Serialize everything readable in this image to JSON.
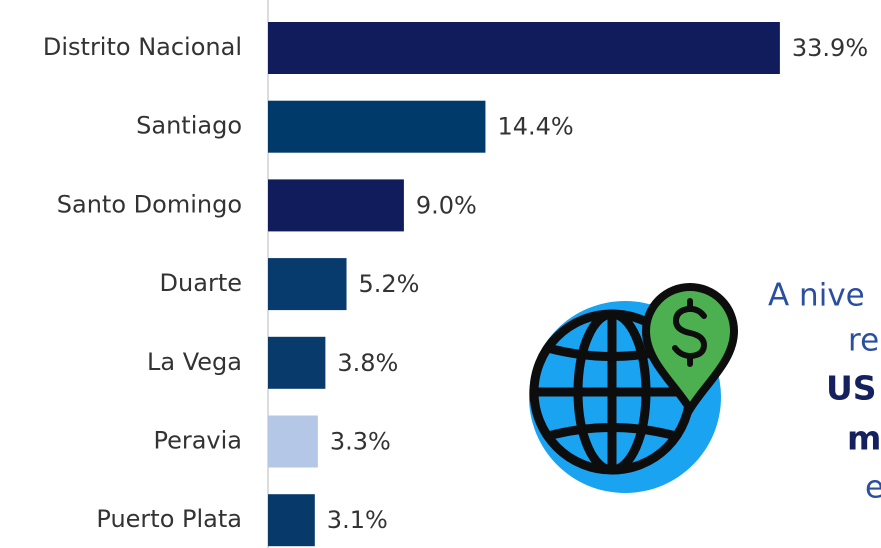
{
  "chart_data": {
    "type": "bar",
    "orientation": "horizontal",
    "categories": [
      "Distrito Nacional",
      "Santiago",
      "Santo Domingo",
      "Duarte",
      "La Vega",
      "Peravia",
      "Puerto Plata"
    ],
    "values": [
      33.9,
      14.4,
      9.0,
      5.2,
      3.8,
      3.3,
      3.1
    ],
    "value_labels": [
      "33.9%",
      "14.4%",
      "9.0%",
      "5.2%",
      "3.8%",
      "3.3%",
      "3.1%"
    ],
    "colors": [
      "#111c5c",
      "#003a6b",
      "#111c5c",
      "#073b6e",
      "#083a6c",
      "#b4c7e7",
      "#073a6b"
    ],
    "annotations": [
      "A nive",
      "re",
      "US",
      "m",
      "e"
    ]
  }
}
